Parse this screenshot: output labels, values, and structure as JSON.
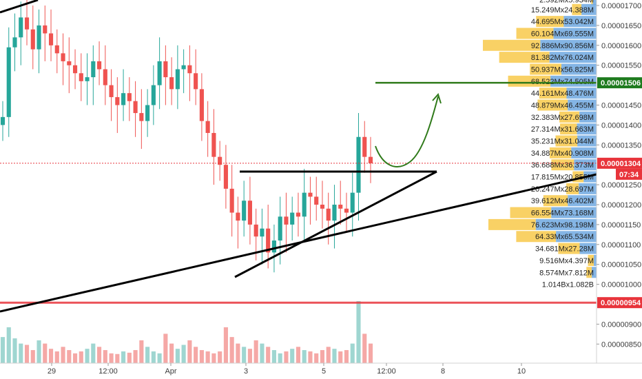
{
  "chart_data": {
    "type": "candlestick",
    "y_axis": {
      "range": [
        8.2e-06,
        1.71e-05
      ],
      "ticks": [
        "0.00001700",
        "0.00001650",
        "0.00001600",
        "0.00001550",
        "0.00001450",
        "0.00001400",
        "0.00001350",
        "0.00001250",
        "0.00001200",
        "0.00001150",
        "0.00001100",
        "0.00001050",
        "0.00001000",
        "0.00000900",
        "0.00000850"
      ],
      "tick_values": [
        1.7e-05,
        1.65e-05,
        1.6e-05,
        1.55e-05,
        1.45e-05,
        1.4e-05,
        1.35e-05,
        1.25e-05,
        1.2e-05,
        1.15e-05,
        1.1e-05,
        1.05e-05,
        1e-05,
        9e-06,
        8.5e-06
      ]
    },
    "x_axis": {
      "labels": [
        "29",
        "12:00",
        "Apr",
        "3",
        "5",
        "12:00",
        "8",
        "10"
      ]
    },
    "price_tags": {
      "target": {
        "label": "0.00001506",
        "value": 1.506e-05,
        "color": "#1e7b1e"
      },
      "current": {
        "label": "0.00001304",
        "value": 1.304e-05,
        "countdown": "07:34",
        "color": "#e8343b"
      },
      "support": {
        "label": "0.00000954",
        "value": 9.54e-06,
        "color": "#e8343b"
      }
    },
    "volume_profile": [
      {
        "label": "2.592Mx5.934M",
        "buy": 2.592,
        "sell": 5.934,
        "price": 1.715e-05
      },
      {
        "label": "15.249Mx24.388M",
        "buy": 15.249,
        "sell": 24.388,
        "price": 1.69e-05
      },
      {
        "label": "44.695Mx53.042M",
        "buy": 44.695,
        "sell": 53.042,
        "price": 1.66e-05
      },
      {
        "label": "60.104Mx69.555M",
        "buy": 60.104,
        "sell": 69.555,
        "price": 1.63e-05
      },
      {
        "label": "92.886Mx90.856M",
        "buy": 92.886,
        "sell": 90.856,
        "price": 1.6e-05
      },
      {
        "label": "81.382Mx76.024M",
        "buy": 81.382,
        "sell": 76.024,
        "price": 1.57e-05
      },
      {
        "label": "50.937Mx56.825M",
        "buy": 50.937,
        "sell": 56.825,
        "price": 1.54e-05
      },
      {
        "label": "68.522Mx74.505M",
        "buy": 68.522,
        "sell": 74.505,
        "price": 1.51e-05
      },
      {
        "label": "44.161Mx48.476M",
        "buy": 44.161,
        "sell": 48.476,
        "price": 1.48e-05
      },
      {
        "label": "48.879Mx46.455M",
        "buy": 48.879,
        "sell": 46.455,
        "price": 1.45e-05
      },
      {
        "label": "32.383Mx27.698M",
        "buy": 32.383,
        "sell": 27.698,
        "price": 1.42e-05
      },
      {
        "label": "27.314Mx31.663M",
        "buy": 27.314,
        "sell": 31.663,
        "price": 1.39e-05
      },
      {
        "label": "35.231Mx31.044M",
        "buy": 35.231,
        "sell": 31.044,
        "price": 1.36e-05
      },
      {
        "label": "34.887Mx40.908M",
        "buy": 34.887,
        "sell": 40.908,
        "price": 1.33e-05
      },
      {
        "label": "36.688Mx36.373M",
        "buy": 36.688,
        "sell": 36.373,
        "price": 1.3e-05
      },
      {
        "label": "17.815Mx20.855M",
        "buy": 17.815,
        "sell": 20.855,
        "price": 1.27e-05
      },
      {
        "label": "20.247Mx28.697M",
        "buy": 20.247,
        "sell": 28.697,
        "price": 1.24e-05
      },
      {
        "label": "39.612Mx46.402M",
        "buy": 39.612,
        "sell": 46.402,
        "price": 1.21e-05
      },
      {
        "label": "66.554Mx73.168M",
        "buy": 66.554,
        "sell": 73.168,
        "price": 1.18e-05
      },
      {
        "label": "76.623Mx98.198M",
        "buy": 76.623,
        "sell": 98.198,
        "price": 1.15e-05
      },
      {
        "label": "64.33Mx65.534M",
        "buy": 64.33,
        "sell": 65.534,
        "price": 1.12e-05
      },
      {
        "label": "34.681Mx27.28M",
        "buy": 34.681,
        "sell": 27.28,
        "price": 1.09e-05
      },
      {
        "label": "9.516Mx4.397M",
        "buy": 9.516,
        "sell": 4.397,
        "price": 1.06e-05
      },
      {
        "label": "8.574Mx7.812M",
        "buy": 8.574,
        "sell": 7.812,
        "price": 1.03e-05
      },
      {
        "label": "1.014Bx1.082B",
        "buy": 1014,
        "sell": 1082,
        "price": 1e-05
      }
    ],
    "series": [
      {
        "values": [
          1.42e-05,
          1.595e-05,
          1.62e-05,
          1.67e-05,
          1.64e-05,
          1.59e-05,
          1.65e-05,
          1.63e-05,
          1.6e-05,
          1.58e-05,
          1.56e-05,
          1.55e-05,
          1.53e-05,
          1.51e-05,
          1.52e-05,
          1.56e-05,
          1.54e-05,
          1.5e-05,
          1.47e-05,
          1.45e-05,
          1.48e-05,
          1.46e-05,
          1.43e-05,
          1.41e-05,
          1.45e-05,
          1.5e-05,
          1.56e-05,
          1.52e-05,
          1.49e-05,
          1.54e-05,
          1.55e-05,
          1.53e-05,
          1.49e-05,
          1.41e-05,
          1.38e-05,
          1.32e-05,
          1.3e-05,
          1.24e-05,
          1.18e-05,
          1.16e-05,
          1.21e-05,
          1.15e-05,
          1.12e-05,
          1.14e-05,
          1.08e-05,
          1.11e-05,
          1.17e-05,
          1.15e-05,
          1.18e-05,
          1.17e-05,
          1.23e-05,
          1.22e-05,
          1.2e-05,
          1.19e-05,
          1.16e-05,
          1.2e-05,
          1.19e-05,
          1.18e-05,
          1.23e-05,
          1.37e-05,
          1.32e-05,
          1.304e-05
        ]
      }
    ],
    "volume": [
      {
        "values": [
          40,
          55,
          38,
          30,
          28,
          20,
          35,
          30,
          22,
          18,
          25,
          20,
          15,
          18,
          22,
          30,
          25,
          20,
          15,
          14,
          18,
          16,
          20,
          35,
          25,
          18,
          15,
          45,
          30,
          22,
          28,
          35,
          25,
          20,
          18,
          15,
          18,
          55,
          40,
          30,
          25,
          22,
          35,
          30,
          25,
          20,
          15,
          18,
          22,
          25,
          20,
          18,
          15,
          20,
          25,
          22,
          18,
          20,
          30,
          95,
          45,
          30
        ]
      }
    ],
    "trendlines": [
      {
        "from": [
          "29",
          9e-06
        ],
        "to": [
          "10",
          1.28e-05
        ],
        "color": "#000000"
      },
      {
        "from": [
          "3",
          1.04e-05
        ],
        "to": [
          "8",
          1.29e-05
        ],
        "color": "#000000"
      },
      {
        "from": [
          "3",
          1.29e-05
        ],
        "to": [
          "8",
          1.29e-05
        ],
        "color": "#000000"
      }
    ],
    "colors": {
      "up": "#26a69a",
      "down": "#ef5350",
      "vol_up": "#9fd6d1",
      "vol_down": "#f5a8a6",
      "profile_buy": "#f8c94a",
      "profile_sell": "#6ea8e0",
      "target_line": "#2f7a1a",
      "support_line": "#e8343b"
    }
  }
}
